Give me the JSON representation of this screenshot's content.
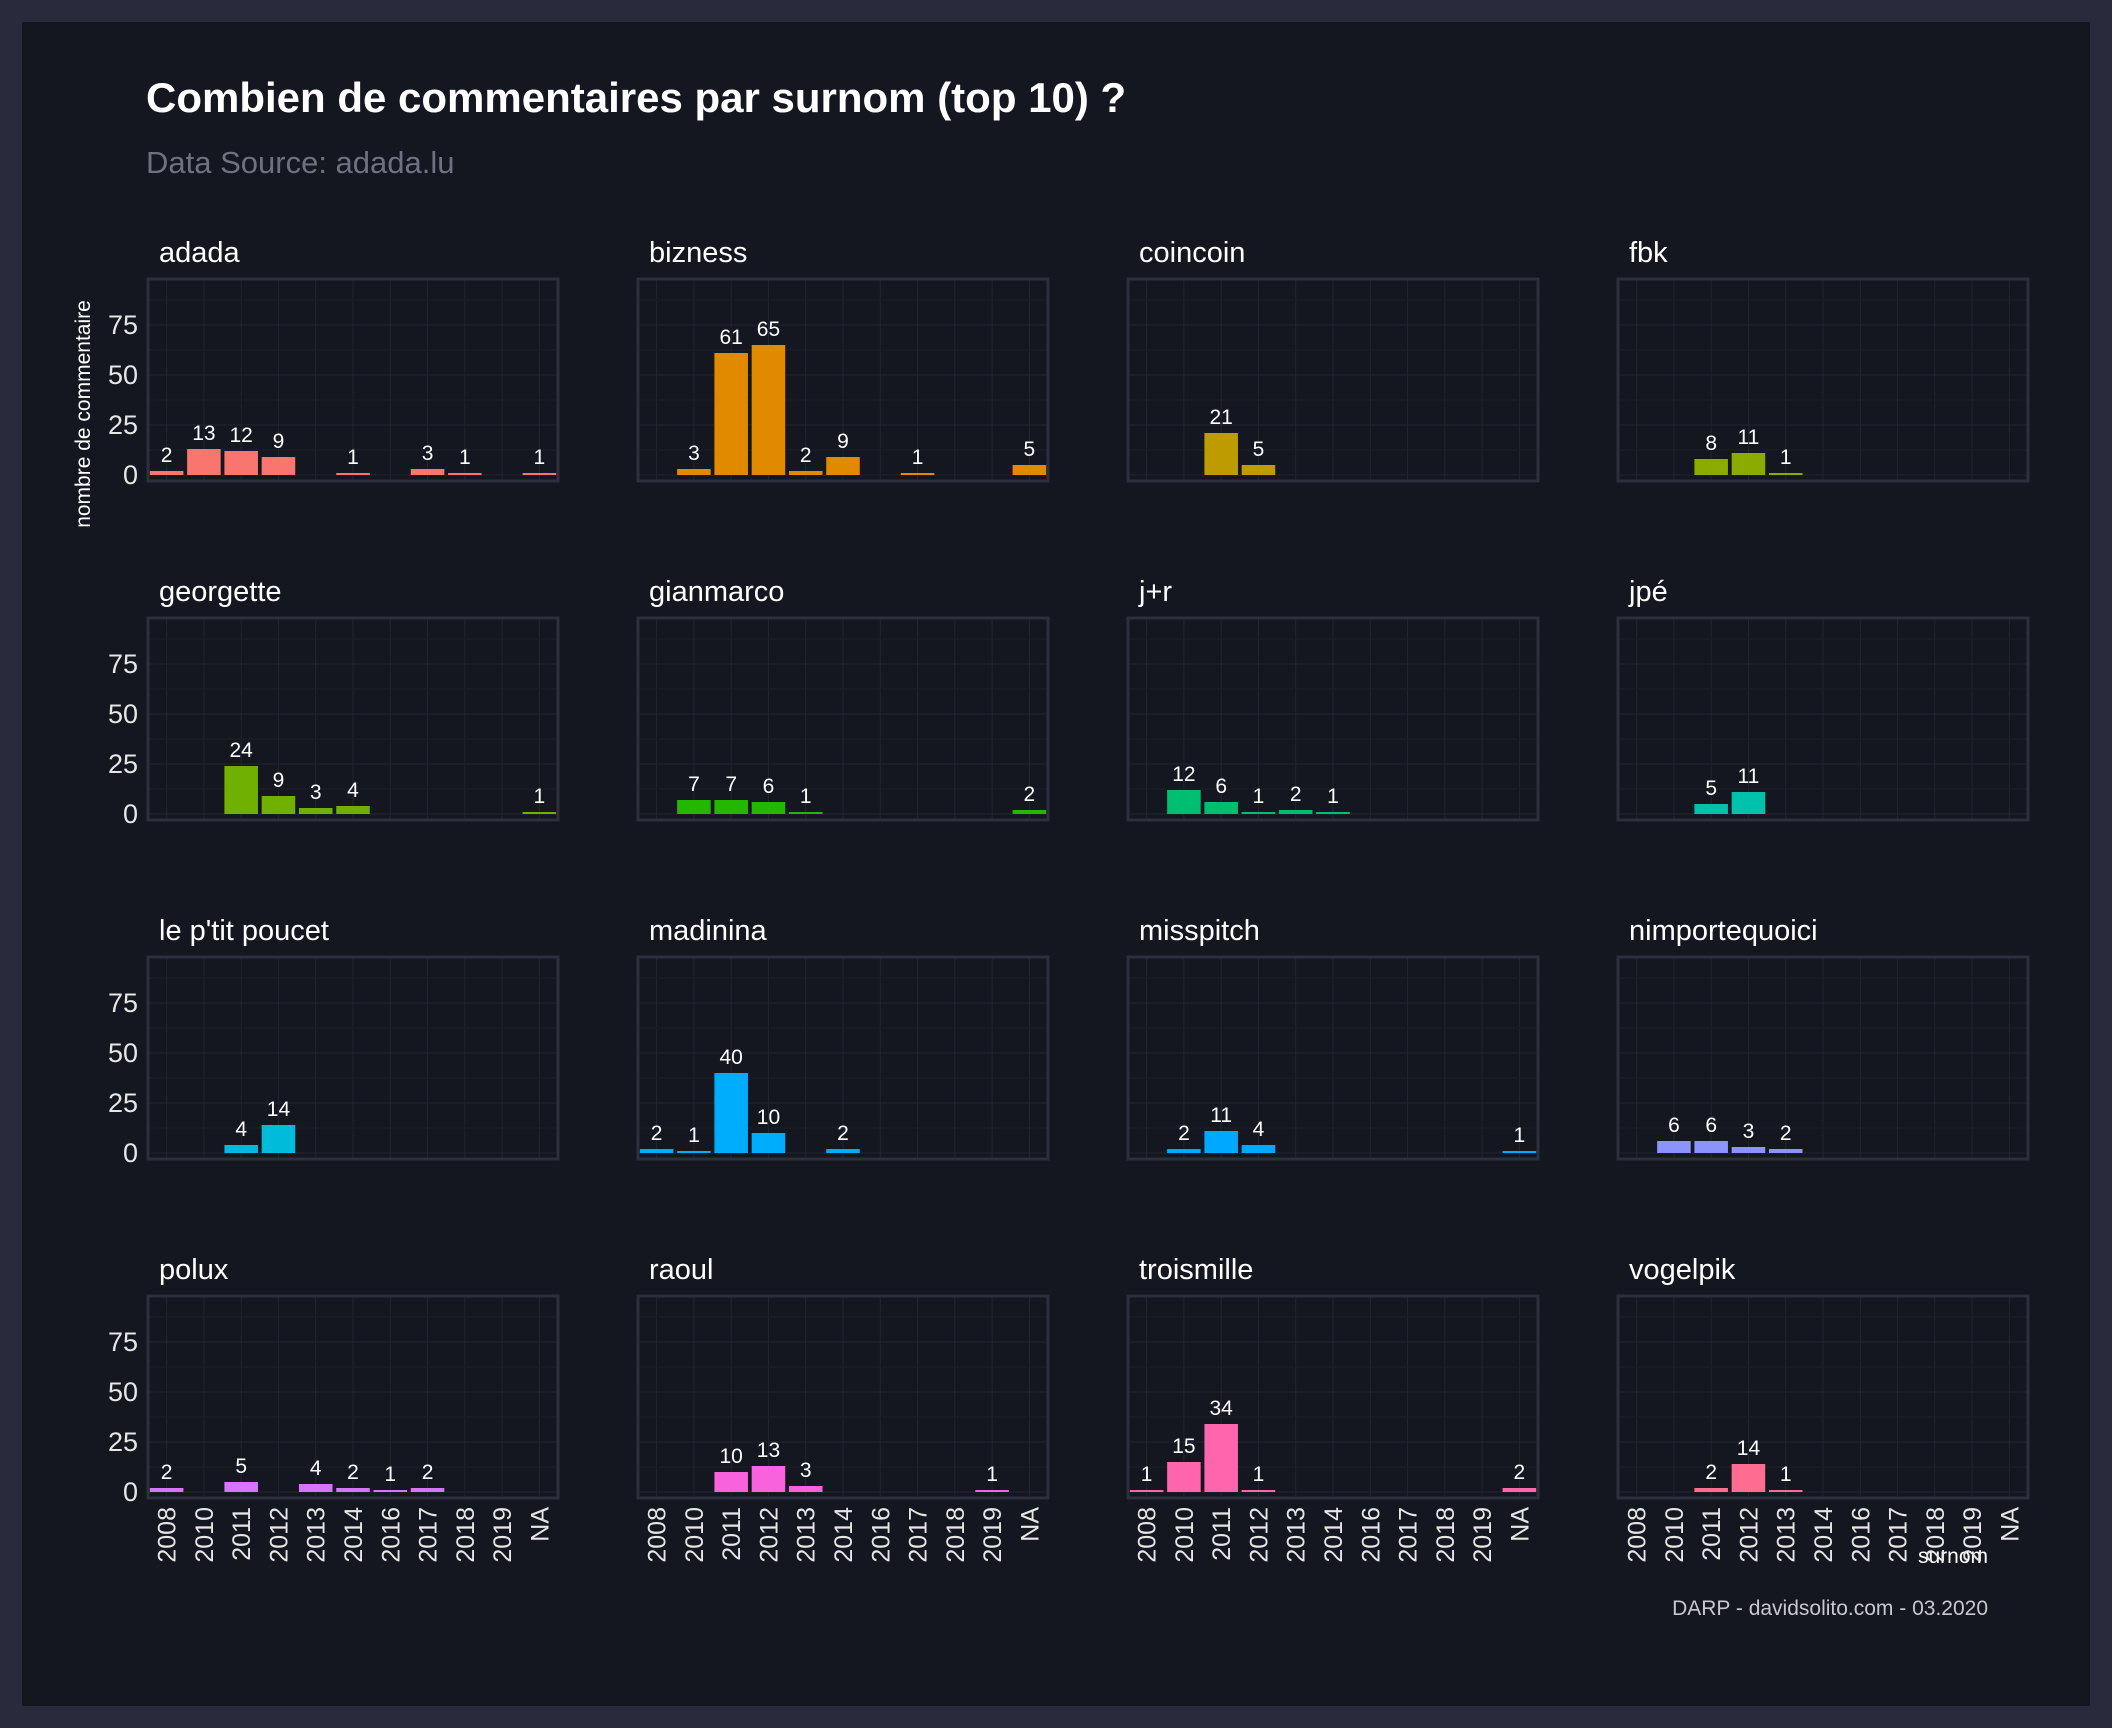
{
  "title": "Combien de commentaires par surnom (top 10) ?",
  "subtitle": "Data Source: adada.lu",
  "caption": "DARP - davidsolito.com - 03.2020",
  "chart_data": {
    "type": "bar",
    "facet_by": "surnom",
    "ylabel": "nombre de commentaire",
    "xlabel": "surnom",
    "categories": [
      "2008",
      "2010",
      "2011",
      "2012",
      "2013",
      "2014",
      "2016",
      "2017",
      "2018",
      "2019",
      "NA"
    ],
    "yticks": [
      0,
      25,
      50,
      75
    ],
    "ylim": [
      0,
      95
    ],
    "grid": true,
    "legend": "none",
    "facets": [
      {
        "name": "adada",
        "color": "#f8766d",
        "values": {
          "2008": 2,
          "2010": 13,
          "2011": 12,
          "2012": 9,
          "2014": 1,
          "2017": 3,
          "2018": 1,
          "NA": 1
        }
      },
      {
        "name": "bizness",
        "color": "#e18a00",
        "values": {
          "2010": 3,
          "2011": 61,
          "2012": 65,
          "2013": 2,
          "2014": 9,
          "2017": 1,
          "NA": 5
        }
      },
      {
        "name": "coincoin",
        "color": "#be9c00",
        "values": {
          "2011": 21,
          "2012": 5
        }
      },
      {
        "name": "fbk",
        "color": "#8cab00",
        "values": {
          "2011": 8,
          "2012": 11,
          "2013": 1
        }
      },
      {
        "name": "georgette",
        "color": "#6fb000",
        "values": {
          "2011": 24,
          "2012": 9,
          "2013": 3,
          "2014": 4,
          "NA": 1
        }
      },
      {
        "name": "gianmarco",
        "color": "#24b700",
        "values": {
          "2010": 7,
          "2011": 7,
          "2012": 6,
          "2013": 1,
          "NA": 2
        }
      },
      {
        "name": "j+r",
        "color": "#00be70",
        "values": {
          "2010": 12,
          "2011": 6,
          "2012": 1,
          "2013": 2,
          "2014": 1
        }
      },
      {
        "name": "jpé",
        "color": "#00c1ab",
        "values": {
          "2011": 5,
          "2012": 11
        }
      },
      {
        "name": "le p'tit poucet",
        "color": "#00bbda",
        "values": {
          "2011": 4,
          "2012": 14
        }
      },
      {
        "name": "madinina",
        "color": "#00acfc",
        "values": {
          "2008": 2,
          "2010": 1,
          "2011": 40,
          "2012": 10,
          "2014": 2
        }
      },
      {
        "name": "misspitch",
        "color": "#00a9ff",
        "values": {
          "2010": 2,
          "2011": 11,
          "2012": 4,
          "NA": 1
        }
      },
      {
        "name": "nimportequoici",
        "color": "#8b93ff",
        "values": {
          "2010": 6,
          "2011": 6,
          "2012": 3,
          "2013": 2
        }
      },
      {
        "name": "polux",
        "color": "#d575fe",
        "values": {
          "2008": 2,
          "2011": 5,
          "2013": 4,
          "2014": 2,
          "2016": 1,
          "2017": 2
        }
      },
      {
        "name": "raoul",
        "color": "#f962dd",
        "values": {
          "2011": 10,
          "2012": 13,
          "2013": 3,
          "2019": 1
        }
      },
      {
        "name": "troismille",
        "color": "#ff65ac",
        "values": {
          "2008": 1,
          "2010": 15,
          "2011": 34,
          "2012": 1,
          "NA": 2
        }
      },
      {
        "name": "vogelpik",
        "color": "#ff6c91",
        "values": {
          "2011": 2,
          "2012": 14,
          "2013": 1
        }
      }
    ]
  }
}
